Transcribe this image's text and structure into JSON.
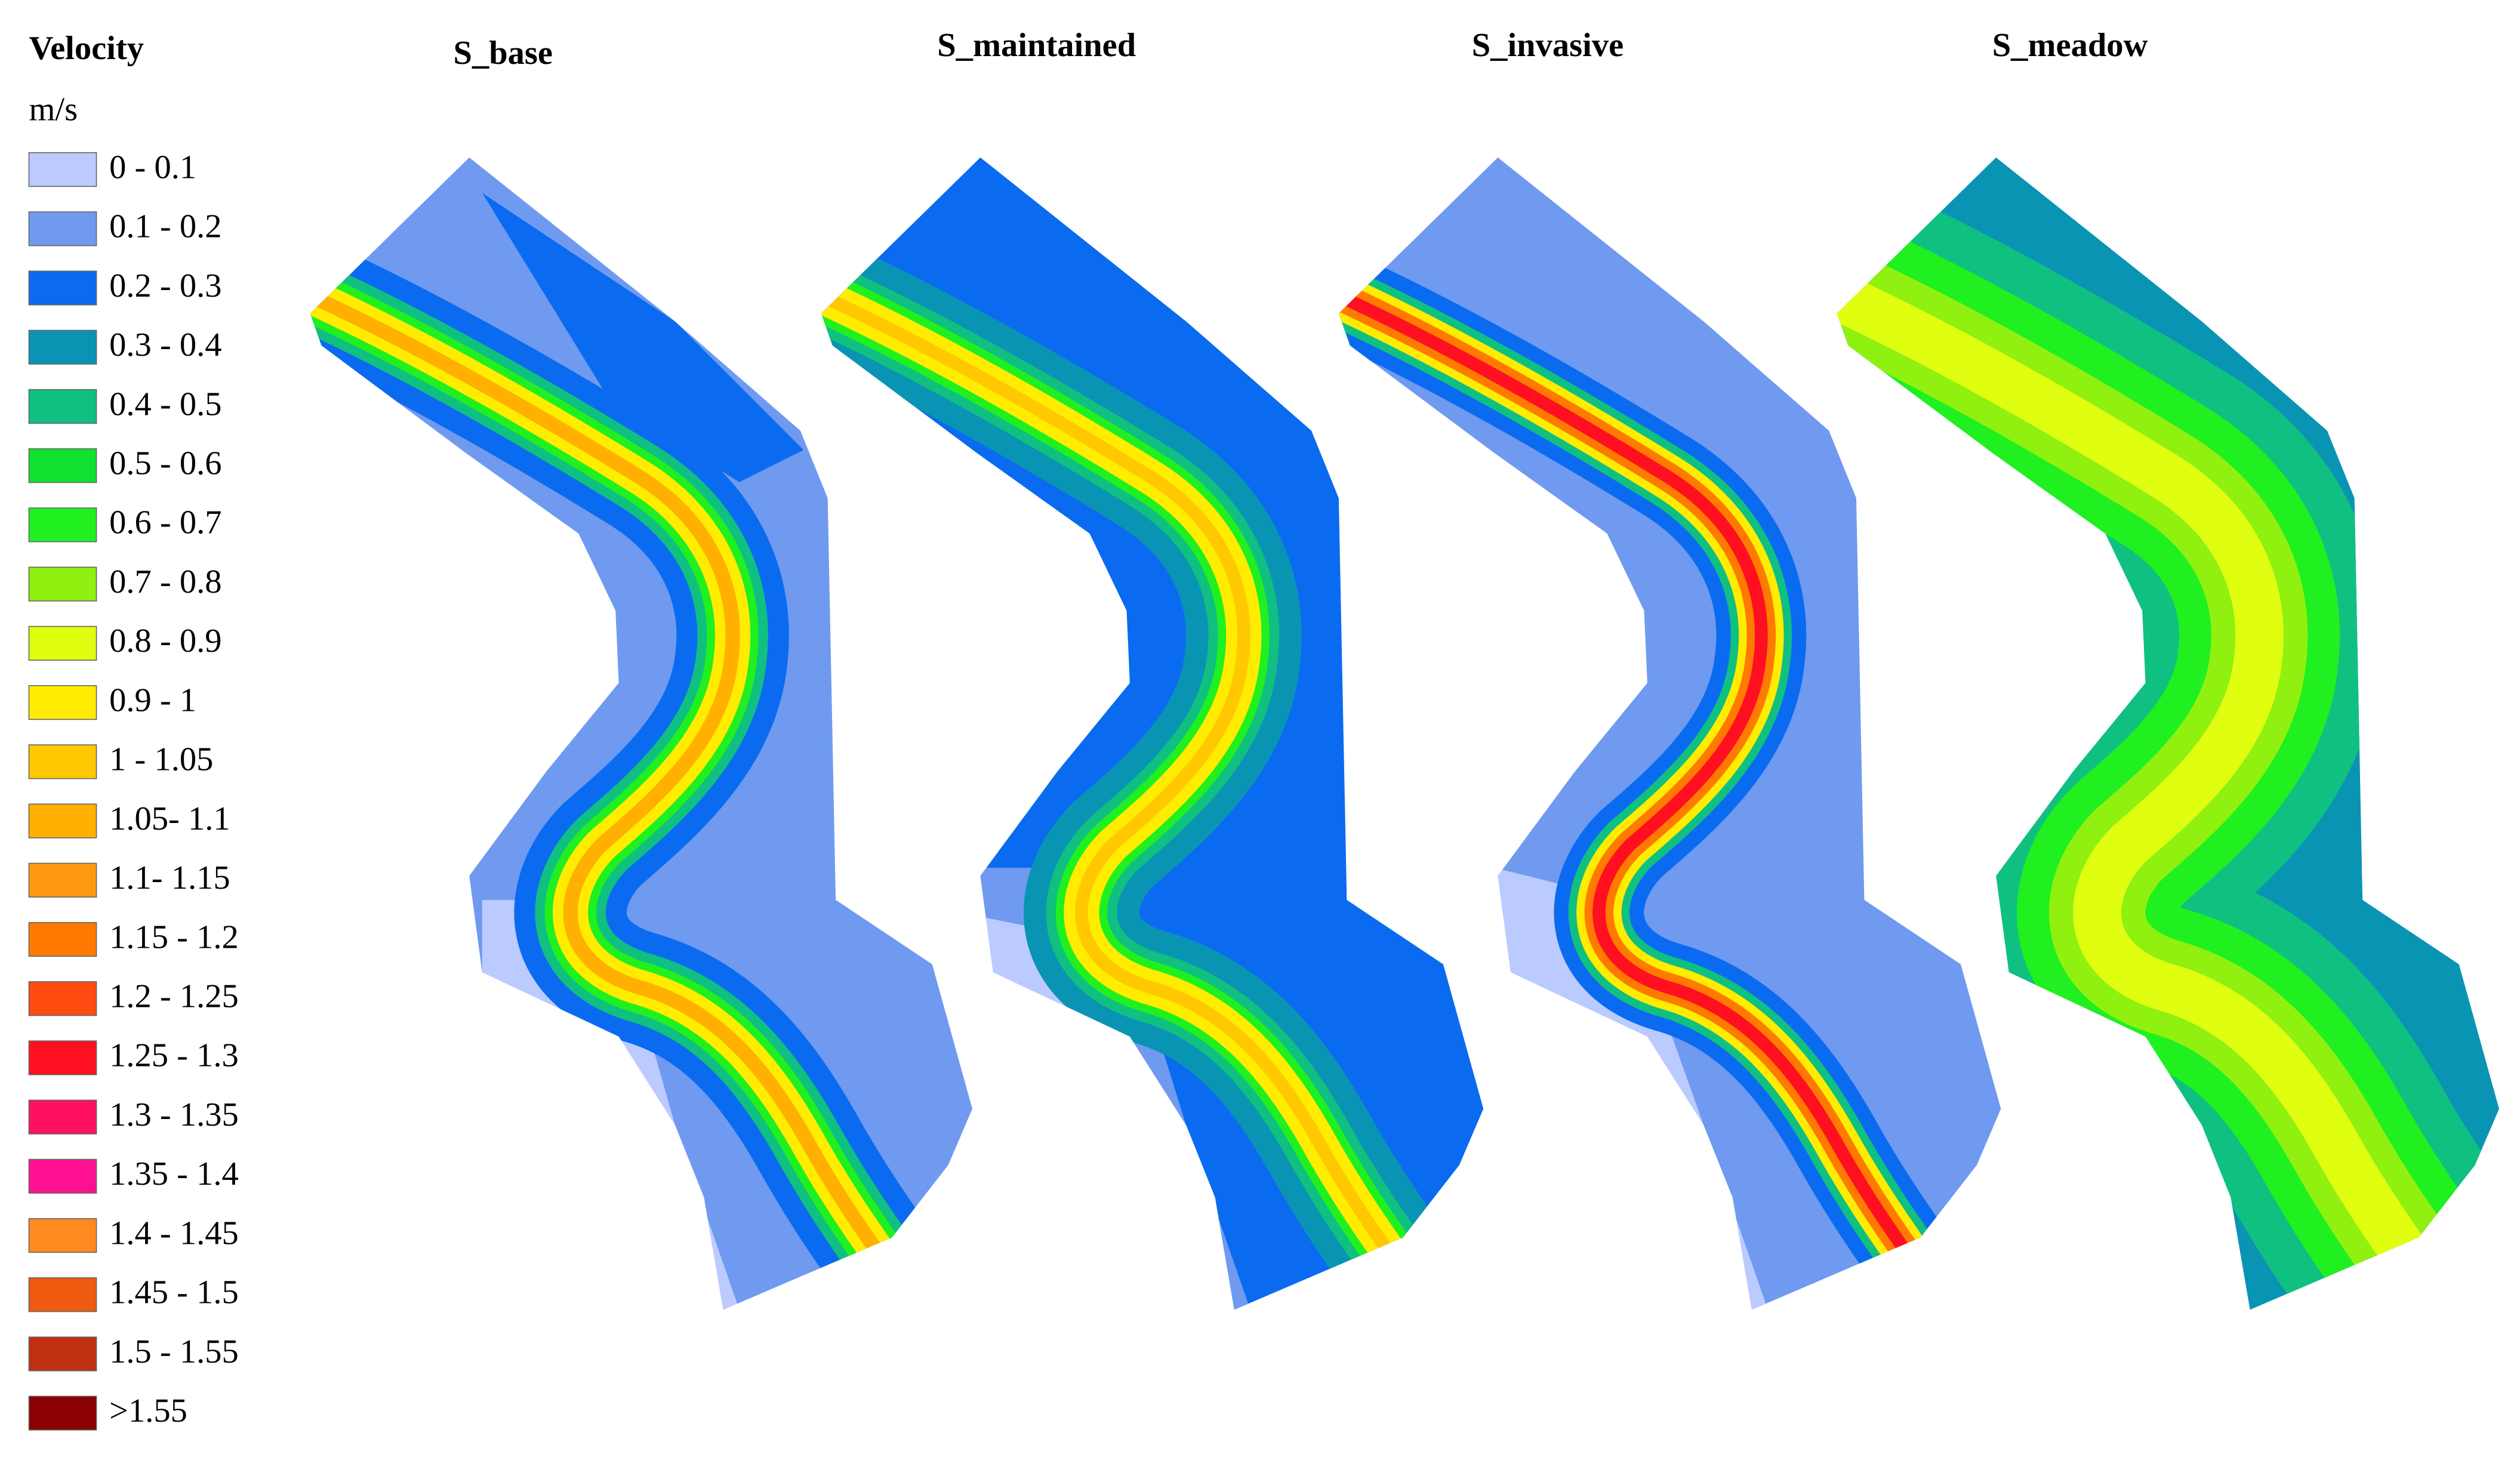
{
  "legend": {
    "title": "Velocity",
    "unit": "m/s",
    "items": [
      {
        "label": "0 - 0.1",
        "color": "#bccbff"
      },
      {
        "label": "0.1 - 0.2",
        "color": "#6f9af0"
      },
      {
        "label": "0.2 - 0.3",
        "color": "#0a6bf0"
      },
      {
        "label": "0.3 - 0.4",
        "color": "#0a94b4"
      },
      {
        "label": "0.4 - 0.5",
        "color": "#10c080"
      },
      {
        "label": "0.5 - 0.6",
        "color": "#10e030"
      },
      {
        "label": "0.6 - 0.7",
        "color": "#20f020"
      },
      {
        "label": "0.7 - 0.8",
        "color": "#90f010"
      },
      {
        "label": "0.8 - 0.9",
        "color": "#e0ff10"
      },
      {
        "label": "0.9 - 1",
        "color": "#ffec00"
      },
      {
        "label": "1 - 1.05",
        "color": "#ffc800"
      },
      {
        "label": "1.05- 1.1",
        "color": "#ffb000"
      },
      {
        "label": "1.1- 1.15",
        "color": "#ff9a10"
      },
      {
        "label": "1.15 - 1.2",
        "color": "#ff7a00"
      },
      {
        "label": "1.2 - 1.25",
        "color": "#ff4a10"
      },
      {
        "label": "1.25 - 1.3",
        "color": "#ff1020"
      },
      {
        "label": "1.3 - 1.35",
        "color": "#ff1060"
      },
      {
        "label": "1.35 - 1.4",
        "color": "#ff1090"
      },
      {
        "label": "1.4 - 1.45",
        "color": "#ff8a20"
      },
      {
        "label": "1.45 - 1.5",
        "color": "#ee5a10"
      },
      {
        "label": "1.5 - 1.55",
        "color": "#c03010"
      },
      {
        "label": ">1.55",
        "color": "#8b0000"
      }
    ]
  },
  "panels": [
    {
      "title": "S_base"
    },
    {
      "title": "S_maintained"
    },
    {
      "title": "S_invasive"
    },
    {
      "title": "S_meadow"
    }
  ]
}
